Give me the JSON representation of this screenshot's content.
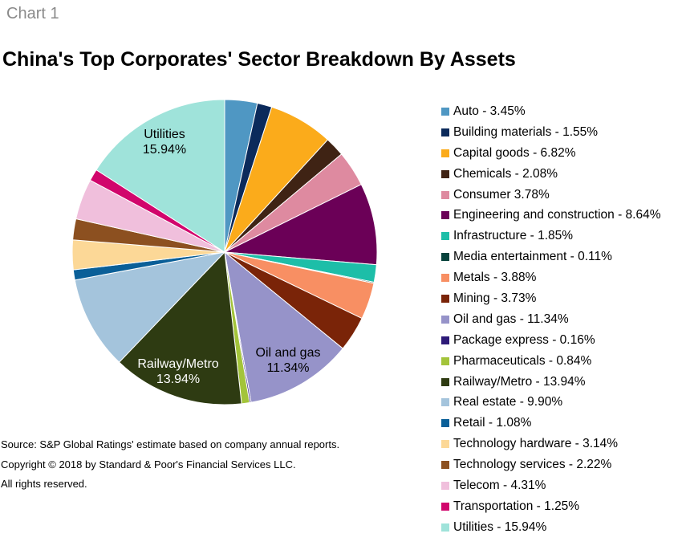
{
  "header": {
    "chart_label": "Chart 1",
    "title": "China's Top Corporates' Sector Breakdown By Assets"
  },
  "chart_data": {
    "type": "pie",
    "title": "China's Top Corporates' Sector Breakdown By Assets",
    "legend_position": "right",
    "slices": [
      {
        "name": "Auto",
        "value": 3.45,
        "legend": "Auto - 3.45%",
        "color": "#4f97c3"
      },
      {
        "name": "Building materials",
        "value": 1.55,
        "legend": "Building materials - 1.55%",
        "color": "#0b2a5b"
      },
      {
        "name": "Capital goods",
        "value": 6.82,
        "legend": "Capital goods - 6.82%",
        "color": "#fbab1b"
      },
      {
        "name": "Chemicals",
        "value": 2.08,
        "legend": "Chemicals - 2.08%",
        "color": "#3f2314"
      },
      {
        "name": "Consumer",
        "value": 3.78,
        "legend": "Consumer 3.78%",
        "color": "#de8aa0"
      },
      {
        "name": "Engineering and construction",
        "value": 8.64,
        "legend": "Engineering and construction - 8.64%",
        "color": "#6b0057"
      },
      {
        "name": "Infrastructure",
        "value": 1.85,
        "legend": "Infrastructure - 1.85%",
        "color": "#1dbea8"
      },
      {
        "name": "Media entertainment",
        "value": 0.11,
        "legend": "Media entertainment - 0.11%",
        "color": "#08433c"
      },
      {
        "name": "Metals",
        "value": 3.88,
        "legend": "Metals - 3.88%",
        "color": "#f88f63"
      },
      {
        "name": "Mining",
        "value": 3.73,
        "legend": "Mining - 3.73%",
        "color": "#7a2408"
      },
      {
        "name": "Oil and gas",
        "value": 11.34,
        "legend": "Oil and gas - 11.34%",
        "color": "#9693c9"
      },
      {
        "name": "Package express",
        "value": 0.16,
        "legend": "Package express - 0.16%",
        "color": "#2d1a78"
      },
      {
        "name": "Pharmaceuticals",
        "value": 0.84,
        "legend": "Pharmaceuticals - 0.84%",
        "color": "#a3c43a"
      },
      {
        "name": "Railway/Metro",
        "value": 13.94,
        "legend": "Railway/Metro - 13.94%",
        "color": "#2e3b12"
      },
      {
        "name": "Real estate",
        "value": 9.9,
        "legend": "Real estate - 9.90%",
        "color": "#a4c4dc"
      },
      {
        "name": "Retail",
        "value": 1.08,
        "legend": "Retail - 1.08%",
        "color": "#0a5f98"
      },
      {
        "name": "Technology hardware",
        "value": 3.14,
        "legend": "Technology hardware - 3.14%",
        "color": "#fcd897"
      },
      {
        "name": "Technology services",
        "value": 2.22,
        "legend": "Technology services - 2.22%",
        "color": "#8c5020"
      },
      {
        "name": "Telecom",
        "value": 4.31,
        "legend": "Telecom - 4.31%",
        "color": "#f0bfdc"
      },
      {
        "name": "Transportation",
        "value": 1.25,
        "legend": "Transportation - 1.25%",
        "color": "#d1066c"
      },
      {
        "name": "Utilities",
        "value": 15.94,
        "legend": "Utilities - 15.94%",
        "color": "#9fe3da"
      }
    ],
    "data_labels": [
      {
        "name": "Utilities",
        "value_text": "15.94%",
        "text_color": "#000000"
      },
      {
        "name": "Oil and gas",
        "value_text": "11.34%",
        "text_color": "#000000"
      },
      {
        "name": "Railway/Metro",
        "value_text": "13.94%",
        "text_color": "#ffffff"
      }
    ]
  },
  "footer": {
    "source": "Source: S&P Global Ratings' estimate based on company annual reports.",
    "copyright": "Copyright © 2018 by Standard & Poor's Financial Services LLC.",
    "rights": "All rights reserved."
  }
}
